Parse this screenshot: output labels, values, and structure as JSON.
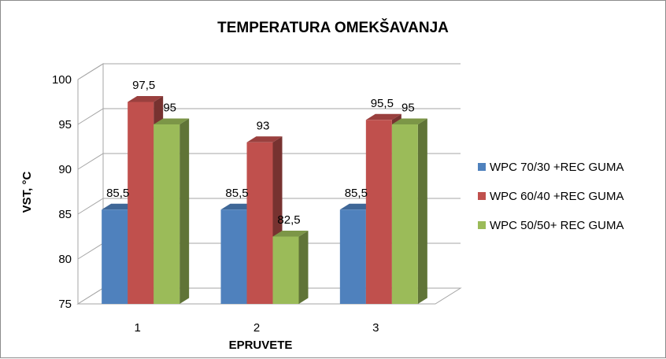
{
  "chart_data": {
    "type": "bar",
    "title": "TEMPERATURA OMEKŠAVANJA",
    "xlabel": "EPRUVETE",
    "ylabel": "VST, °C",
    "categories": [
      "1",
      "2",
      "3"
    ],
    "ylim": [
      75,
      100
    ],
    "yticks": [
      "75",
      "80",
      "85",
      "90",
      "95",
      "100"
    ],
    "grid": true,
    "legend_position": "right",
    "series": [
      {
        "name": "WPC 70/30 +REC GUMA",
        "values": [
          85.5,
          85.5,
          85.5
        ],
        "labels": [
          "85,5",
          "85,5",
          "85,5"
        ],
        "color": "#4f81bd"
      },
      {
        "name": "WPC 60/40 +REC GUMA",
        "values": [
          97.5,
          93,
          95.5
        ],
        "labels": [
          "97,5",
          "93",
          "95,5"
        ],
        "color": "#c0504d"
      },
      {
        "name": "WPC 50/50+ REC GUMA",
        "values": [
          95,
          82.5,
          95
        ],
        "labels": [
          "95",
          "82,5",
          "95"
        ],
        "color": "#9bbb59"
      }
    ]
  }
}
